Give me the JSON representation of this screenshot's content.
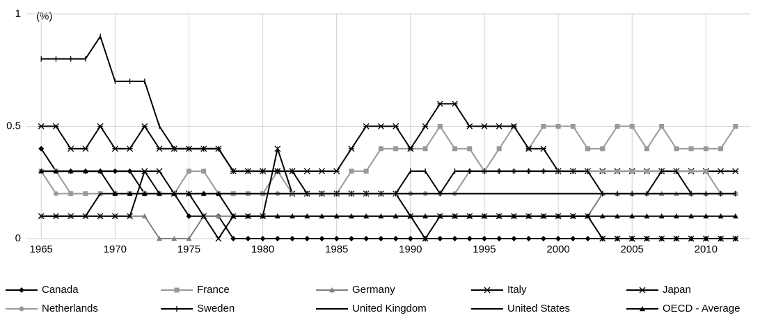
{
  "chart_data": {
    "type": "line",
    "annotation": "(%)",
    "x": [
      1965,
      1966,
      1967,
      1968,
      1969,
      1970,
      1971,
      1972,
      1973,
      1974,
      1975,
      1976,
      1977,
      1978,
      1979,
      1980,
      1981,
      1982,
      1983,
      1984,
      1985,
      1986,
      1987,
      1988,
      1989,
      1990,
      1991,
      1992,
      1993,
      1994,
      1995,
      1996,
      1997,
      1998,
      1999,
      2000,
      2001,
      2002,
      2003,
      2004,
      2005,
      2006,
      2007,
      2008,
      2009,
      2010,
      2011,
      2012
    ],
    "xlim": [
      1964,
      2013
    ],
    "xticks": [
      1965,
      1970,
      1975,
      1980,
      1985,
      1990,
      1995,
      2000,
      2005,
      2010
    ],
    "ylim": [
      0,
      1
    ],
    "yticks": [
      0,
      0.5,
      1
    ],
    "grid": true,
    "legend": "bottom",
    "series": [
      {
        "name": "Canada",
        "color": "#000000",
        "marker": "diamond",
        "values": [
          0.4,
          0.3,
          0.3,
          0.3,
          0.3,
          0.3,
          0.3,
          0.2,
          0.2,
          0.2,
          0.1,
          0.1,
          0.1,
          0,
          0,
          0,
          0,
          0,
          0,
          0,
          0,
          0,
          0,
          0,
          0,
          0,
          0,
          0,
          0,
          0,
          0,
          0,
          0,
          0,
          0,
          0,
          0,
          0,
          0,
          0,
          0,
          0,
          0,
          0,
          0,
          0,
          0,
          0
        ]
      },
      {
        "name": "France",
        "color": "#999999",
        "marker": "square",
        "values": [
          0.3,
          0.3,
          0.2,
          0.2,
          0.2,
          0.2,
          0.2,
          0.2,
          0.2,
          0.2,
          0.3,
          0.3,
          0.2,
          0.2,
          0.2,
          0.2,
          0.3,
          0.2,
          0.2,
          0.2,
          0.2,
          0.3,
          0.3,
          0.4,
          0.4,
          0.4,
          0.4,
          0.5,
          0.4,
          0.4,
          0.3,
          0.4,
          0.5,
          0.4,
          0.5,
          0.5,
          0.5,
          0.4,
          0.4,
          0.5,
          0.5,
          0.4,
          0.5,
          0.4,
          0.4,
          0.4,
          0.4,
          0.5
        ]
      },
      {
        "name": "Germany",
        "color": "#7f7f7f",
        "marker": "triangle",
        "values": [
          0.1,
          0.1,
          0.1,
          0.1,
          0.1,
          0.1,
          0.1,
          0.1,
          0,
          0,
          0,
          0.1,
          0.1,
          0.1,
          0.1,
          0.1,
          0.1,
          0.1,
          0.1,
          0.1,
          0.1,
          0.1,
          0.1,
          0.1,
          0.1,
          0.1,
          0.1,
          0.1,
          0.1,
          0.1,
          0.1,
          0.1,
          0.1,
          0.1,
          0.1,
          0.1,
          0.1,
          0.1,
          0.2,
          0.2,
          0.2,
          0.2,
          0.2,
          0.2,
          0.2,
          0.2,
          0.2,
          0.2
        ]
      },
      {
        "name": "Italy",
        "color": "#000000",
        "marker": "x",
        "values": [
          0.1,
          0.1,
          0.1,
          0.1,
          0.1,
          0.1,
          0.1,
          0.3,
          0.3,
          0.2,
          0.2,
          0.1,
          0,
          0.1,
          0.1,
          0.1,
          0.4,
          0.2,
          0.2,
          0.2,
          0.2,
          0.2,
          0.2,
          0.2,
          0.2,
          0.1,
          0,
          0.1,
          0.1,
          0.1,
          0.1,
          0.1,
          0.1,
          0.1,
          0.1,
          0.1,
          0.1,
          0.1,
          0,
          0,
          0,
          0,
          0,
          0,
          0,
          0,
          0,
          0
        ]
      },
      {
        "name": "Japan",
        "color": "#000000",
        "marker": "star",
        "values": [
          0.5,
          0.5,
          0.4,
          0.4,
          0.5,
          0.4,
          0.4,
          0.5,
          0.4,
          0.4,
          0.4,
          0.4,
          0.4,
          0.3,
          0.3,
          0.3,
          0.3,
          0.3,
          0.3,
          0.3,
          0.3,
          0.4,
          0.5,
          0.5,
          0.5,
          0.4,
          0.5,
          0.6,
          0.6,
          0.5,
          0.5,
          0.5,
          0.5,
          0.4,
          0.4,
          0.3,
          0.3,
          0.3,
          0.3,
          0.3,
          0.3,
          0.3,
          0.3,
          0.3,
          0.3,
          0.3,
          0.3,
          0.3
        ]
      },
      {
        "name": "Netherlands",
        "color": "#999999",
        "marker": "circle",
        "values": [
          0.3,
          0.2,
          0.2,
          0.2,
          0.2,
          0.2,
          0.2,
          0.2,
          0.2,
          0.2,
          0.2,
          0.2,
          0.2,
          0.2,
          0.2,
          0.2,
          0.2,
          0.2,
          0.2,
          0.2,
          0.2,
          0.2,
          0.2,
          0.2,
          0.2,
          0.2,
          0.2,
          0.2,
          0.2,
          0.3,
          0.3,
          0.3,
          0.3,
          0.3,
          0.3,
          0.3,
          0.3,
          0.3,
          0.3,
          0.3,
          0.3,
          0.3,
          0.3,
          0.3,
          0.3,
          0.3,
          0.2,
          0.2
        ]
      },
      {
        "name": "Sweden",
        "color": "#000000",
        "marker": "plus",
        "values": [
          0.8,
          0.8,
          0.8,
          0.8,
          0.9,
          0.7,
          0.7,
          0.7,
          0.5,
          0.4,
          0.4,
          0.4,
          0.4,
          0.3,
          0.3,
          0.3,
          0.3,
          0.3,
          0.2,
          0.2,
          0.2,
          0.2,
          0.2,
          0.2,
          0.2,
          0.3,
          0.3,
          0.2,
          0.3,
          0.3,
          0.3,
          0.3,
          0.3,
          0.3,
          0.3,
          0.3,
          0.3,
          0.3,
          0.2,
          0.2,
          0.2,
          0.2,
          0.3,
          0.3,
          0.2,
          0.2,
          0.2,
          0.2
        ]
      },
      {
        "name": "United Kingdom",
        "color": "#000000",
        "values": [
          0.3,
          0.3,
          0.3,
          0.3,
          0.3,
          0.3,
          0.3,
          0.3,
          0.2,
          0.2,
          0.2,
          0.2,
          0.2,
          0.2,
          0.2,
          0.2,
          0.2,
          0.2,
          0.2,
          0.2,
          0.2,
          0.2,
          0.2,
          0.2,
          0.2,
          0.2,
          0.2,
          0.2,
          0.2,
          0.2,
          0.2,
          0.2,
          0.2,
          0.2,
          0.2,
          0.2,
          0.2,
          0.2,
          0.2,
          0.2,
          0.2,
          0.2,
          0.2,
          0.2,
          0.2,
          0.2,
          0.2,
          0.2
        ]
      },
      {
        "name": "United States",
        "color": "#000000",
        "values": [
          0.1,
          0.1,
          0.1,
          0.1,
          0.2,
          0.2,
          0.2,
          0.2,
          0.2,
          0.2,
          0.2,
          0.2,
          0.2,
          0.2,
          0.2,
          0.2,
          0.2,
          0.2,
          0.2,
          0.2,
          0.2,
          0.2,
          0.2,
          0.2,
          0.2,
          0.2,
          0.2,
          0.2,
          0.2,
          0.2,
          0.2,
          0.2,
          0.2,
          0.2,
          0.2,
          0.2,
          0.2,
          0.2,
          0.2,
          0.2,
          0.2,
          0.2,
          0.2,
          0.2,
          0.2,
          0.2,
          0.2,
          0.2
        ]
      },
      {
        "name": "OECD - Average",
        "color": "#000000",
        "marker": "triangle",
        "values": [
          0.3,
          0.3,
          0.3,
          0.3,
          0.3,
          0.2,
          0.2,
          0.2,
          0.2,
          0.2,
          0.2,
          0.2,
          0.2,
          0.1,
          0.1,
          0.1,
          0.1,
          0.1,
          0.1,
          0.1,
          0.1,
          0.1,
          0.1,
          0.1,
          0.1,
          0.1,
          0.1,
          0.1,
          0.1,
          0.1,
          0.1,
          0.1,
          0.1,
          0.1,
          0.1,
          0.1,
          0.1,
          0.1,
          0.1,
          0.1,
          0.1,
          0.1,
          0.1,
          0.1,
          0.1,
          0.1,
          0.1,
          0.1
        ]
      }
    ]
  }
}
